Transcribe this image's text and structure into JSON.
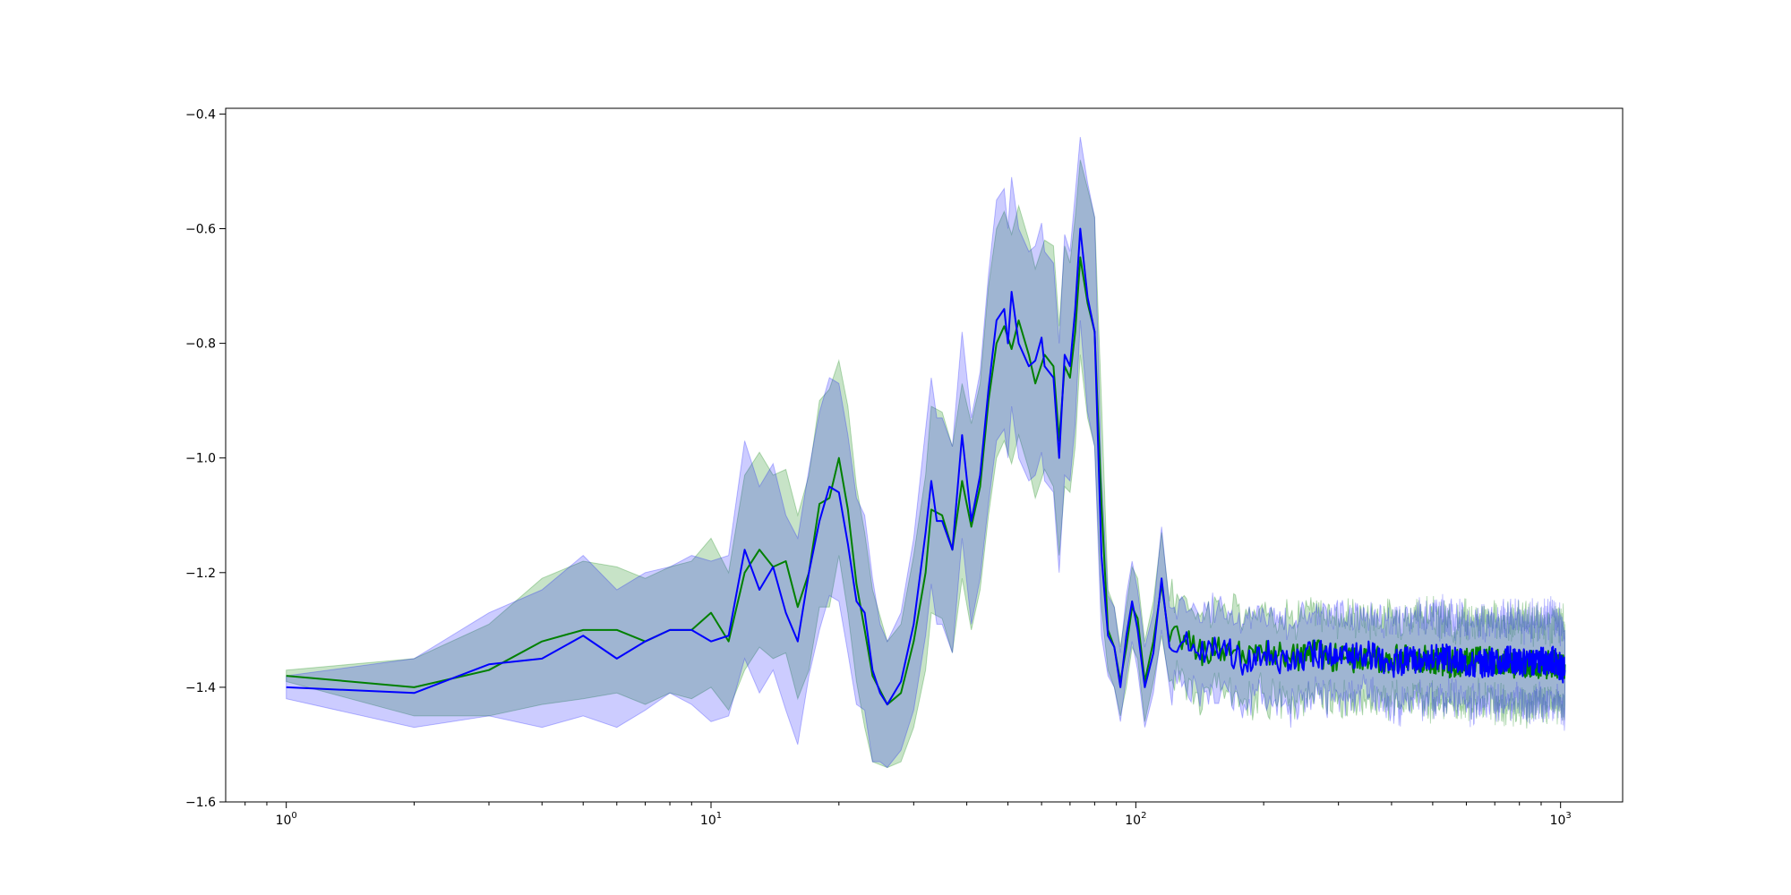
{
  "chart_data": {
    "type": "line",
    "title": "",
    "xlabel": "",
    "ylabel": "",
    "x_scale": "log",
    "xlim": [
      0.72,
      1400
    ],
    "ylim": [
      -1.6,
      -0.39
    ],
    "grid": false,
    "legend": "none",
    "x_ticks": [
      {
        "value": 1,
        "base": "10",
        "exp": "0"
      },
      {
        "value": 10,
        "base": "10",
        "exp": "1"
      },
      {
        "value": 100,
        "base": "10",
        "exp": "2"
      },
      {
        "value": 1000,
        "base": "10",
        "exp": "3"
      }
    ],
    "y_ticks": [
      {
        "value": -1.6,
        "label": "−1.6"
      },
      {
        "value": -1.4,
        "label": "−1.4"
      },
      {
        "value": -1.2,
        "label": "−1.2"
      },
      {
        "value": -1.0,
        "label": "−1.0"
      },
      {
        "value": -0.8,
        "label": "−0.8"
      },
      {
        "value": -0.6,
        "label": "−0.6"
      },
      {
        "value": -0.4,
        "label": "−0.4"
      }
    ],
    "series": [
      {
        "color": "#008000",
        "band_color": "#008000",
        "band_opacity": 0.22,
        "points": [
          [
            1,
            -1.38,
            0.01
          ],
          [
            2,
            -1.4,
            0.05
          ],
          [
            3,
            -1.37,
            0.08
          ],
          [
            4,
            -1.32,
            0.11
          ],
          [
            5,
            -1.3,
            0.12
          ],
          [
            6,
            -1.3,
            0.11
          ],
          [
            7,
            -1.32,
            0.11
          ],
          [
            8,
            -1.3,
            0.11
          ],
          [
            9,
            -1.3,
            0.12
          ],
          [
            10,
            -1.27,
            0.13
          ],
          [
            11,
            -1.32,
            0.12
          ],
          [
            12,
            -1.2,
            0.17
          ],
          [
            13,
            -1.16,
            0.17
          ],
          [
            14,
            -1.19,
            0.16
          ],
          [
            15,
            -1.18,
            0.16
          ],
          [
            16,
            -1.26,
            0.16
          ],
          [
            17,
            -1.2,
            0.17
          ],
          [
            18,
            -1.08,
            0.18
          ],
          [
            19,
            -1.07,
            0.19
          ],
          [
            20,
            -1.0,
            0.17
          ],
          [
            21,
            -1.09,
            0.18
          ],
          [
            22,
            -1.22,
            0.17
          ],
          [
            23,
            -1.3,
            0.17
          ],
          [
            24,
            -1.38,
            0.15
          ],
          [
            26,
            -1.43,
            0.11
          ],
          [
            28,
            -1.41,
            0.12
          ],
          [
            30,
            -1.32,
            0.15
          ],
          [
            32,
            -1.2,
            0.17
          ],
          [
            33,
            -1.09,
            0.18
          ],
          [
            35,
            -1.1,
            0.18
          ],
          [
            37,
            -1.16,
            0.18
          ],
          [
            39,
            -1.04,
            0.17
          ],
          [
            41,
            -1.12,
            0.18
          ],
          [
            43,
            -1.05,
            0.18
          ],
          [
            45,
            -0.9,
            0.2
          ],
          [
            47,
            -0.8,
            0.2
          ],
          [
            49,
            -0.77,
            0.2
          ],
          [
            51,
            -0.81,
            0.2
          ],
          [
            53,
            -0.76,
            0.2
          ],
          [
            56,
            -0.82,
            0.2
          ],
          [
            58,
            -0.87,
            0.2
          ],
          [
            61,
            -0.82,
            0.2
          ],
          [
            64,
            -0.84,
            0.21
          ],
          [
            66,
            -0.97,
            0.2
          ],
          [
            68,
            -0.84,
            0.21
          ],
          [
            70,
            -0.86,
            0.2
          ],
          [
            72,
            -0.78,
            0.2
          ],
          [
            74,
            -0.65,
            0.17
          ],
          [
            77,
            -0.73,
            0.2
          ],
          [
            80,
            -0.78,
            0.2
          ],
          [
            83,
            -1.08,
            0.18
          ],
          [
            86,
            -1.3,
            0.07
          ],
          [
            89,
            -1.33,
            0.07
          ],
          [
            92,
            -1.39,
            0.06
          ],
          [
            95,
            -1.33,
            0.07
          ],
          [
            98,
            -1.26,
            0.07
          ],
          [
            101,
            -1.28,
            0.07
          ],
          [
            105,
            -1.39,
            0.07
          ],
          [
            110,
            -1.32,
            0.07
          ],
          [
            115,
            -1.22,
            0.09
          ],
          [
            120,
            -1.32,
            0.07
          ],
          [
            130,
            -1.31,
            0.07
          ],
          [
            140,
            -1.34,
            0.07
          ],
          [
            160,
            -1.33,
            0.07
          ],
          [
            180,
            -1.35,
            0.07
          ],
          [
            200,
            -1.34,
            0.07
          ],
          [
            230,
            -1.35,
            0.07
          ],
          [
            260,
            -1.34,
            0.07
          ],
          [
            300,
            -1.35,
            0.07
          ],
          [
            350,
            -1.35,
            0.07
          ],
          [
            400,
            -1.35,
            0.07
          ],
          [
            470,
            -1.35,
            0.07
          ],
          [
            550,
            -1.36,
            0.07
          ],
          [
            650,
            -1.35,
            0.07
          ],
          [
            750,
            -1.36,
            0.07
          ],
          [
            850,
            -1.36,
            0.07
          ],
          [
            950,
            -1.36,
            0.07
          ],
          [
            1024,
            -1.36,
            0.07
          ]
        ]
      },
      {
        "color": "#0000ff",
        "band_color": "#0000ff",
        "band_opacity": 0.2,
        "points": [
          [
            1,
            -1.4,
            0.02
          ],
          [
            2,
            -1.41,
            0.06
          ],
          [
            3,
            -1.36,
            0.09
          ],
          [
            4,
            -1.35,
            0.12
          ],
          [
            5,
            -1.31,
            0.14
          ],
          [
            6,
            -1.35,
            0.12
          ],
          [
            7,
            -1.32,
            0.12
          ],
          [
            8,
            -1.3,
            0.11
          ],
          [
            9,
            -1.3,
            0.13
          ],
          [
            10,
            -1.32,
            0.14
          ],
          [
            11,
            -1.31,
            0.14
          ],
          [
            12,
            -1.16,
            0.19
          ],
          [
            13,
            -1.23,
            0.18
          ],
          [
            14,
            -1.19,
            0.18
          ],
          [
            15,
            -1.27,
            0.17
          ],
          [
            16,
            -1.32,
            0.18
          ],
          [
            17,
            -1.2,
            0.18
          ],
          [
            18,
            -1.11,
            0.19
          ],
          [
            19,
            -1.05,
            0.19
          ],
          [
            20,
            -1.06,
            0.19
          ],
          [
            21,
            -1.15,
            0.19
          ],
          [
            22,
            -1.25,
            0.18
          ],
          [
            23,
            -1.27,
            0.17
          ],
          [
            24,
            -1.37,
            0.16
          ],
          [
            25,
            -1.41,
            0.12
          ],
          [
            26,
            -1.43,
            0.11
          ],
          [
            28,
            -1.39,
            0.12
          ],
          [
            30,
            -1.29,
            0.15
          ],
          [
            32,
            -1.13,
            0.18
          ],
          [
            33,
            -1.04,
            0.18
          ],
          [
            34,
            -1.11,
            0.18
          ],
          [
            35,
            -1.11,
            0.18
          ],
          [
            37,
            -1.16,
            0.18
          ],
          [
            39,
            -0.96,
            0.18
          ],
          [
            41,
            -1.11,
            0.18
          ],
          [
            43,
            -1.03,
            0.18
          ],
          [
            45,
            -0.88,
            0.2
          ],
          [
            47,
            -0.76,
            0.21
          ],
          [
            49,
            -0.74,
            0.21
          ],
          [
            50,
            -0.8,
            0.2
          ],
          [
            51,
            -0.71,
            0.2
          ],
          [
            53,
            -0.8,
            0.2
          ],
          [
            56,
            -0.84,
            0.2
          ],
          [
            58,
            -0.83,
            0.2
          ],
          [
            60,
            -0.79,
            0.2
          ],
          [
            61,
            -0.84,
            0.2
          ],
          [
            64,
            -0.86,
            0.2
          ],
          [
            66,
            -1.0,
            0.2
          ],
          [
            68,
            -0.82,
            0.21
          ],
          [
            70,
            -0.84,
            0.2
          ],
          [
            72,
            -0.74,
            0.2
          ],
          [
            74,
            -0.6,
            0.16
          ],
          [
            77,
            -0.72,
            0.2
          ],
          [
            80,
            -0.78,
            0.2
          ],
          [
            83,
            -1.17,
            0.14
          ],
          [
            86,
            -1.31,
            0.07
          ],
          [
            89,
            -1.33,
            0.07
          ],
          [
            92,
            -1.4,
            0.06
          ],
          [
            95,
            -1.31,
            0.07
          ],
          [
            98,
            -1.25,
            0.07
          ],
          [
            101,
            -1.3,
            0.07
          ],
          [
            105,
            -1.4,
            0.07
          ],
          [
            110,
            -1.34,
            0.07
          ],
          [
            115,
            -1.21,
            0.09
          ],
          [
            120,
            -1.33,
            0.07
          ],
          [
            130,
            -1.32,
            0.07
          ],
          [
            140,
            -1.34,
            0.07
          ],
          [
            160,
            -1.33,
            0.07
          ],
          [
            180,
            -1.36,
            0.07
          ],
          [
            200,
            -1.34,
            0.07
          ],
          [
            230,
            -1.36,
            0.07
          ],
          [
            260,
            -1.34,
            0.07
          ],
          [
            300,
            -1.35,
            0.07
          ],
          [
            350,
            -1.34,
            0.07
          ],
          [
            400,
            -1.36,
            0.07
          ],
          [
            470,
            -1.35,
            0.07
          ],
          [
            550,
            -1.35,
            0.07
          ],
          [
            650,
            -1.36,
            0.07
          ],
          [
            750,
            -1.35,
            0.07
          ],
          [
            850,
            -1.36,
            0.07
          ],
          [
            950,
            -1.35,
            0.07
          ],
          [
            1024,
            -1.37,
            0.07
          ]
        ]
      }
    ]
  }
}
